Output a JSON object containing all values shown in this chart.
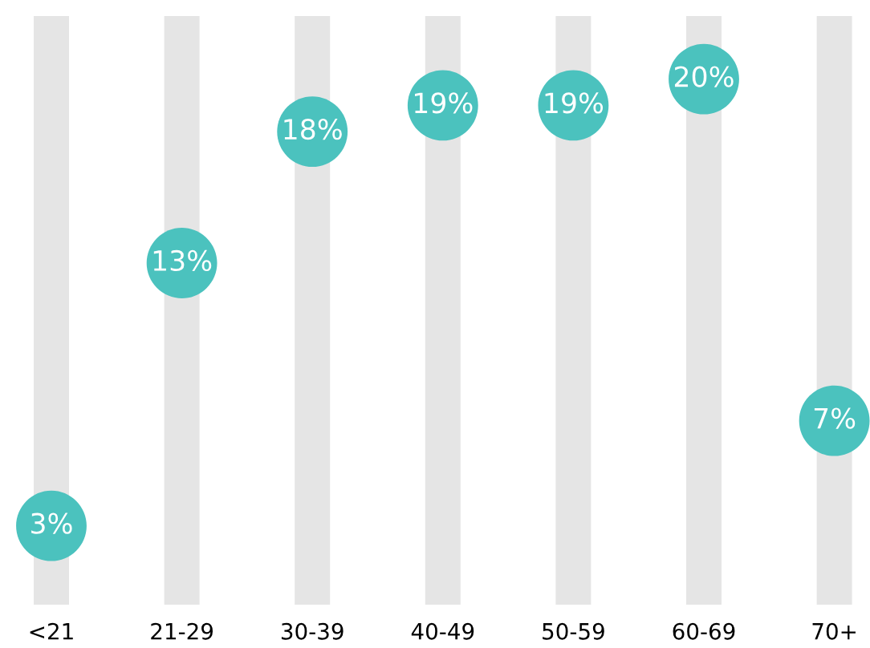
{
  "chart_data": {
    "type": "scatter",
    "categories": [
      "<21",
      "21-29",
      "30-39",
      "40-49",
      "50-59",
      "60-69",
      "70+"
    ],
    "ylim": [
      0,
      22.4
    ],
    "tick_labels": "x",
    "grid": false,
    "legend": false,
    "marker": "circle",
    "series": [
      {
        "type": "bar",
        "color": "#e5e5e5",
        "values": [
          22.4,
          22.4,
          22.4,
          22.4,
          22.4,
          22.4,
          22.4
        ]
      },
      {
        "color": "#4bc2be",
        "values": [
          3,
          13,
          18,
          19,
          19,
          20,
          7
        ],
        "value_labels": [
          "3%",
          "13%",
          "18%",
          "19%",
          "19%",
          "20%",
          "7%"
        ]
      }
    ]
  }
}
